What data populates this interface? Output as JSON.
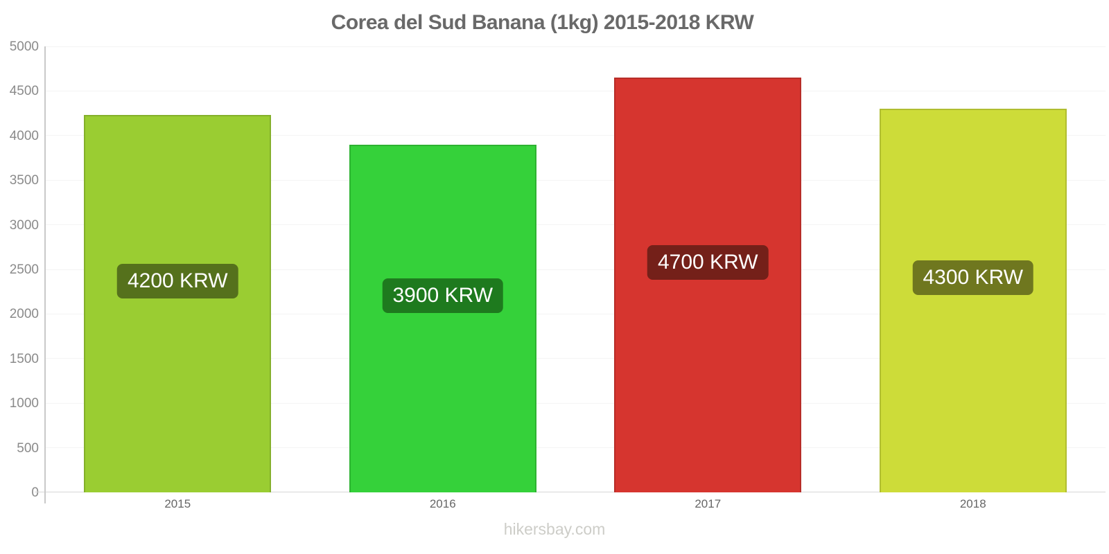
{
  "page": {
    "title": "Corea del Sud Banana (1kg) 2015-2018 KRW",
    "watermark": "hikersbay.com"
  },
  "chart_data": {
    "type": "bar",
    "title": "Corea del Sud Banana (1kg) 2015-2018 KRW",
    "categories": [
      "2015",
      "2016",
      "2017",
      "2018"
    ],
    "values": [
      4230,
      3900,
      4650,
      4300
    ],
    "bar_labels": [
      "4200 KRW",
      "3900 KRW",
      "4700 KRW",
      "4300 KRW"
    ],
    "bar_colors": [
      "#9ACD32",
      "#35D13A",
      "#D6352F",
      "#CDDC39"
    ],
    "bar_label_bg_colors": [
      "#55711C",
      "#1E7A1E",
      "#742019",
      "#6F771F"
    ],
    "xlabel": "",
    "ylabel": "",
    "ylim": [
      0,
      5000
    ],
    "ytick_step": 500,
    "yticks": [
      0,
      500,
      1000,
      1500,
      2000,
      2500,
      3000,
      3500,
      4000,
      4500,
      5000
    ],
    "grid": true,
    "legend": "none",
    "colors": {
      "title": "#696969",
      "grid": "#F4F4F4",
      "axis": "#C9C9C9",
      "y_tick_label": "#8A8A8A",
      "x_tick_label": "#666666",
      "value_label_text": "#FFFFFF",
      "watermark": "#CDCDC8",
      "background": "#FFFFFF"
    }
  }
}
